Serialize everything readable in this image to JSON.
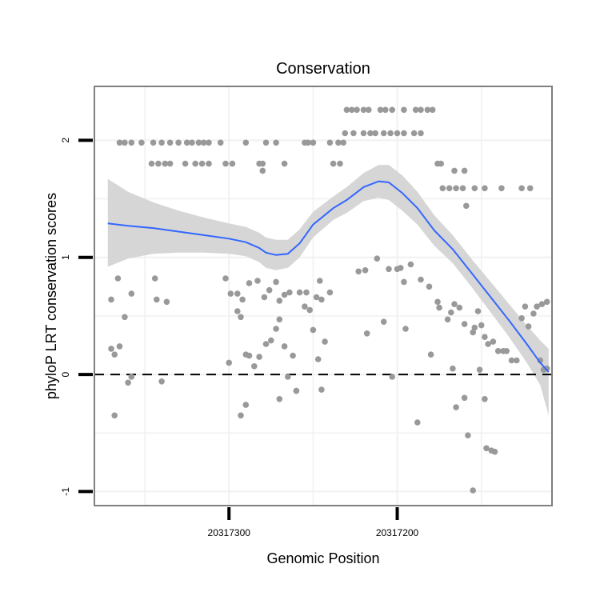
{
  "chart_data": {
    "type": "scatter",
    "title": "Conservation",
    "xlabel": "Genomic Position",
    "ylabel": "phyloP LRT conservation scores",
    "x_reversed": true,
    "xlim": [
      20317380,
      20317108
    ],
    "ylim": [
      -1.12,
      2.46
    ],
    "x_ticks": [
      {
        "value": 20317300,
        "label": "20317300"
      },
      {
        "value": 20317200,
        "label": "20317200"
      }
    ],
    "y_ticks": [
      {
        "value": -1,
        "label": "-1"
      },
      {
        "value": 0,
        "label": "0"
      },
      {
        "value": 1,
        "label": "1"
      },
      {
        "value": 2,
        "label": "2"
      }
    ],
    "grid": true,
    "reference_line": {
      "y": 0,
      "style": "dashed"
    },
    "colors": {
      "points": "#999999",
      "smooth": "#3366ff",
      "ribbon": "#d4d4d4",
      "frame": "#7f7f7f",
      "grid": "#f0f0f0"
    },
    "points": [
      [
        20317365,
        1.98
      ],
      [
        20317362,
        1.98
      ],
      [
        20317358,
        1.98
      ],
      [
        20317352,
        1.98
      ],
      [
        20317345,
        1.98
      ],
      [
        20317340,
        1.98
      ],
      [
        20317335,
        1.98
      ],
      [
        20317330,
        1.98
      ],
      [
        20317325,
        1.98
      ],
      [
        20317322,
        1.98
      ],
      [
        20317318,
        1.98
      ],
      [
        20317315,
        1.98
      ],
      [
        20317312,
        1.98
      ],
      [
        20317305,
        1.98
      ],
      [
        20317290,
        1.98
      ],
      [
        20317278,
        1.98
      ],
      [
        20317272,
        1.98
      ],
      [
        20317255,
        1.98
      ],
      [
        20317253,
        1.98
      ],
      [
        20317250,
        1.98
      ],
      [
        20317240,
        1.98
      ],
      [
        20317235,
        1.98
      ],
      [
        20317232,
        1.98
      ],
      [
        20317346,
        1.8
      ],
      [
        20317342,
        1.8
      ],
      [
        20317338,
        1.8
      ],
      [
        20317335,
        1.8
      ],
      [
        20317326,
        1.8
      ],
      [
        20317320,
        1.8
      ],
      [
        20317316,
        1.8
      ],
      [
        20317312,
        1.8
      ],
      [
        20317302,
        1.8
      ],
      [
        20317298,
        1.8
      ],
      [
        20317282,
        1.8
      ],
      [
        20317280,
        1.8
      ],
      [
        20317267,
        1.8
      ],
      [
        20317238,
        1.8
      ],
      [
        20317234,
        1.8
      ],
      [
        20317280,
        1.74
      ],
      [
        20317230,
        2.26
      ],
      [
        20317227,
        2.26
      ],
      [
        20317224,
        2.26
      ],
      [
        20317220,
        2.26
      ],
      [
        20317217,
        2.26
      ],
      [
        20317210,
        2.26
      ],
      [
        20317207,
        2.26
      ],
      [
        20317203,
        2.26
      ],
      [
        20317196,
        2.26
      ],
      [
        20317189,
        2.26
      ],
      [
        20317186,
        2.26
      ],
      [
        20317182,
        2.26
      ],
      [
        20317179,
        2.26
      ],
      [
        20317231,
        2.06
      ],
      [
        20317226,
        2.06
      ],
      [
        20317220,
        2.06
      ],
      [
        20317216,
        2.06
      ],
      [
        20317213,
        2.06
      ],
      [
        20317208,
        2.06
      ],
      [
        20317204,
        2.06
      ],
      [
        20317200,
        2.06
      ],
      [
        20317196,
        2.06
      ],
      [
        20317190,
        2.06
      ],
      [
        20317186,
        2.06
      ],
      [
        20317176,
        1.8
      ],
      [
        20317174,
        1.8
      ],
      [
        20317166,
        1.74
      ],
      [
        20317160,
        1.74
      ],
      [
        20317173,
        1.59
      ],
      [
        20317169,
        1.59
      ],
      [
        20317165,
        1.59
      ],
      [
        20317161,
        1.59
      ],
      [
        20317154,
        1.59
      ],
      [
        20317148,
        1.59
      ],
      [
        20317138,
        1.59
      ],
      [
        20317126,
        1.59
      ],
      [
        20317121,
        1.59
      ],
      [
        20317159,
        1.44
      ],
      [
        20317370,
        0.64
      ],
      [
        20317366,
        0.82
      ],
      [
        20317362,
        0.49
      ],
      [
        20317358,
        0.69
      ],
      [
        20317344,
        0.82
      ],
      [
        20317343,
        0.64
      ],
      [
        20317337,
        0.62
      ],
      [
        20317302,
        0.82
      ],
      [
        20317299,
        0.69
      ],
      [
        20317295,
        0.69
      ],
      [
        20317292,
        0.64
      ],
      [
        20317288,
        0.78
      ],
      [
        20317283,
        0.8
      ],
      [
        20317279,
        0.66
      ],
      [
        20317276,
        0.72
      ],
      [
        20317272,
        0.79
      ],
      [
        20317270,
        0.63
      ],
      [
        20317267,
        0.68
      ],
      [
        20317264,
        0.7
      ],
      [
        20317258,
        0.7
      ],
      [
        20317254,
        0.7
      ],
      [
        20317248,
        0.66
      ],
      [
        20317246,
        0.8
      ],
      [
        20317245,
        0.64
      ],
      [
        20317240,
        0.7
      ],
      [
        20317370,
        0.22
      ],
      [
        20317368,
        0.17
      ],
      [
        20317365,
        0.24
      ],
      [
        20317360,
        -0.07
      ],
      [
        20317358,
        -0.02
      ],
      [
        20317340,
        -0.06
      ],
      [
        20317300,
        0.1
      ],
      [
        20317295,
        0.54
      ],
      [
        20317293,
        0.49
      ],
      [
        20317290,
        0.17
      ],
      [
        20317288,
        0.16
      ],
      [
        20317285,
        0.07
      ],
      [
        20317282,
        0.15
      ],
      [
        20317278,
        0.26
      ],
      [
        20317275,
        0.29
      ],
      [
        20317272,
        0.39
      ],
      [
        20317270,
        0.47
      ],
      [
        20317267,
        0.24
      ],
      [
        20317265,
        -0.02
      ],
      [
        20317262,
        0.16
      ],
      [
        20317260,
        -0.14
      ],
      [
        20317255,
        0.58
      ],
      [
        20317252,
        0.55
      ],
      [
        20317250,
        0.38
      ],
      [
        20317247,
        0.13
      ],
      [
        20317245,
        -0.13
      ],
      [
        20317243,
        0.28
      ],
      [
        20317368,
        -0.35
      ],
      [
        20317293,
        -0.35
      ],
      [
        20317290,
        -0.26
      ],
      [
        20317270,
        -0.21
      ],
      [
        20317260,
        -0.14
      ],
      [
        20317223,
        0.88
      ],
      [
        20317219,
        0.89
      ],
      [
        20317218,
        0.35
      ],
      [
        20317212,
        0.99
      ],
      [
        20317208,
        0.45
      ],
      [
        20317205,
        0.9
      ],
      [
        20317200,
        0.9
      ],
      [
        20317198,
        0.91
      ],
      [
        20317196,
        0.79
      ],
      [
        20317195,
        0.39
      ],
      [
        20317192,
        0.94
      ],
      [
        20317186,
        0.81
      ],
      [
        20317181,
        0.75
      ],
      [
        20317180,
        0.17
      ],
      [
        20317176,
        0.62
      ],
      [
        20317175,
        0.57
      ],
      [
        20317170,
        0.47
      ],
      [
        20317168,
        0.53
      ],
      [
        20317166,
        0.6
      ],
      [
        20317163,
        0.57
      ],
      [
        20317160,
        0.43
      ],
      [
        20317155,
        0.36
      ],
      [
        20317150,
        0.42
      ],
      [
        20317148,
        0.32
      ],
      [
        20317146,
        0.26
      ],
      [
        20317143,
        0.28
      ],
      [
        20317140,
        0.2
      ],
      [
        20317137,
        0.2
      ],
      [
        20317135,
        0.2
      ],
      [
        20317132,
        0.12
      ],
      [
        20317129,
        0.12
      ],
      [
        20317126,
        0.48
      ],
      [
        20317124,
        0.58
      ],
      [
        20317122,
        0.41
      ],
      [
        20317119,
        0.52
      ],
      [
        20317117,
        0.58
      ],
      [
        20317114,
        0.6
      ],
      [
        20317111,
        0.62
      ],
      [
        20317115,
        0.12
      ],
      [
        20317113,
        0.04
      ],
      [
        20317111,
        0.05
      ],
      [
        20317203,
        -0.02
      ],
      [
        20317188,
        -0.41
      ],
      [
        20317167,
        0.05
      ],
      [
        20317165,
        -0.28
      ],
      [
        20317158,
        -0.52
      ],
      [
        20317155,
        -0.99
      ],
      [
        20317160,
        -0.2
      ],
      [
        20317148,
        -0.21
      ],
      [
        20317151,
        0.04
      ],
      [
        20317152,
        0.54
      ],
      [
        20317154,
        0.4
      ],
      [
        20317147,
        -0.63
      ],
      [
        20317144,
        -0.65
      ],
      [
        20317142,
        -0.66
      ]
    ],
    "smooth": {
      "x": [
        20317372,
        20317360,
        20317345,
        20317330,
        20317315,
        20317300,
        20317290,
        20317282,
        20317278,
        20317272,
        20317265,
        20317258,
        20317250,
        20317238,
        20317230,
        20317220,
        20317211,
        20317205,
        20317197,
        20317188,
        20317178,
        20317167,
        20317156,
        20317145,
        20317134,
        20317123,
        20317115,
        20317110
      ],
      "y": [
        1.29,
        1.27,
        1.25,
        1.22,
        1.19,
        1.16,
        1.13,
        1.08,
        1.04,
        1.02,
        1.03,
        1.12,
        1.28,
        1.42,
        1.49,
        1.6,
        1.65,
        1.64,
        1.55,
        1.42,
        1.23,
        1.07,
        0.87,
        0.67,
        0.47,
        0.26,
        0.1,
        0.02
      ],
      "ci_upper": [
        1.67,
        1.56,
        1.47,
        1.4,
        1.34,
        1.29,
        1.26,
        1.21,
        1.17,
        1.15,
        1.15,
        1.24,
        1.39,
        1.52,
        1.6,
        1.72,
        1.79,
        1.79,
        1.7,
        1.56,
        1.36,
        1.19,
        0.99,
        0.8,
        0.61,
        0.42,
        0.29,
        0.22
      ],
      "ci_lower": [
        0.92,
        0.99,
        1.03,
        1.04,
        1.04,
        1.03,
        1.01,
        0.96,
        0.91,
        0.89,
        0.91,
        1.0,
        1.17,
        1.32,
        1.38,
        1.48,
        1.51,
        1.49,
        1.4,
        1.28,
        1.1,
        0.95,
        0.75,
        0.54,
        0.33,
        0.1,
        -0.09,
        -0.35
      ]
    }
  }
}
